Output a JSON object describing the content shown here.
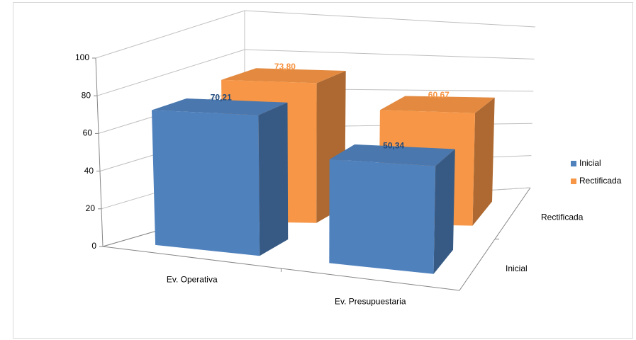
{
  "chart_data": {
    "type": "bar3d",
    "categories": [
      "Ev. Operativa",
      "Ev. Presupuestaria"
    ],
    "series": [
      {
        "name": "Inicial",
        "color": "#4f81bd",
        "label_color": "#1f497d",
        "values": [
          70.21,
          50.34
        ],
        "value_labels": [
          "70,21",
          "50,34"
        ]
      },
      {
        "name": "Rectificada",
        "color": "#f79646",
        "label_color": "#f79646",
        "values": [
          73.8,
          60.67
        ],
        "value_labels": [
          "73,80",
          "60,67"
        ]
      }
    ],
    "ylim": [
      0,
      100
    ],
    "yticks": [
      0,
      20,
      40,
      60,
      80,
      100
    ],
    "grid": true,
    "legend": "right"
  }
}
